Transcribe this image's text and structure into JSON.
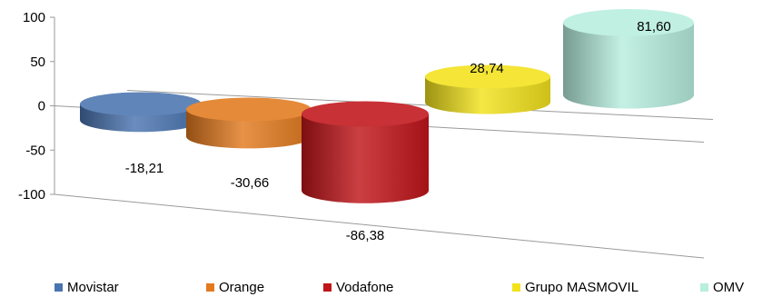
{
  "chart_data": {
    "type": "bar",
    "style": "3d-cylinder",
    "categories": [
      "Movistar",
      "Orange",
      "Vodafone",
      "Grupo MASMOVIL",
      "OMV"
    ],
    "values": [
      -18.21,
      -30.66,
      -86.38,
      28.74,
      81.6
    ],
    "value_labels": [
      "-18,21",
      "-30,66",
      "-86,38",
      "28,74",
      "81,60"
    ],
    "colors": [
      "#4a74b0",
      "#e27a1e",
      "#c0151a",
      "#f2e21c",
      "#b7eede"
    ],
    "ylim": [
      -100,
      100
    ],
    "y_ticks": [
      100,
      50,
      0,
      -50,
      -100
    ],
    "y_tick_labels": [
      "100",
      "50",
      "0",
      "-50",
      "-100"
    ],
    "legend_position": "bottom",
    "grid": false
  }
}
